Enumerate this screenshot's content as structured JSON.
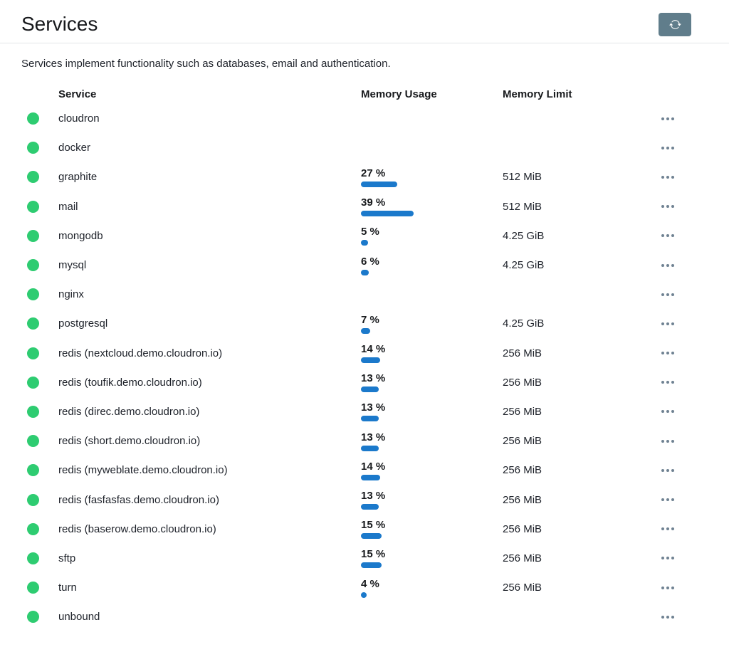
{
  "header": {
    "title": "Services",
    "refresh_icon": "refresh-icon"
  },
  "description": "Services implement functionality such as databases, email and authentication.",
  "colors": {
    "status_running_green": "#2ecc71",
    "memory_usage_bar_blue": "#1b79cb",
    "refresh_button_bg": "#607d8b"
  },
  "table": {
    "columns": [
      "Service",
      "Memory Usage",
      "Memory Limit"
    ],
    "services": [
      {
        "name": "cloudron",
        "status": "running",
        "memory_usage_pct": null,
        "memory_usage_label": null,
        "memory_limit": null
      },
      {
        "name": "docker",
        "status": "running",
        "memory_usage_pct": null,
        "memory_usage_label": null,
        "memory_limit": null
      },
      {
        "name": "graphite",
        "status": "running",
        "memory_usage_pct": 27,
        "memory_usage_label": "27 %",
        "memory_limit": "512 MiB"
      },
      {
        "name": "mail",
        "status": "running",
        "memory_usage_pct": 39,
        "memory_usage_label": "39 %",
        "memory_limit": "512 MiB"
      },
      {
        "name": "mongodb",
        "status": "running",
        "memory_usage_pct": 5,
        "memory_usage_label": "5 %",
        "memory_limit": "4.25 GiB"
      },
      {
        "name": "mysql",
        "status": "running",
        "memory_usage_pct": 6,
        "memory_usage_label": "6 %",
        "memory_limit": "4.25 GiB"
      },
      {
        "name": "nginx",
        "status": "running",
        "memory_usage_pct": null,
        "memory_usage_label": null,
        "memory_limit": null
      },
      {
        "name": "postgresql",
        "status": "running",
        "memory_usage_pct": 7,
        "memory_usage_label": "7 %",
        "memory_limit": "4.25 GiB"
      },
      {
        "name": "redis (nextcloud.demo.cloudron.io)",
        "status": "running",
        "memory_usage_pct": 14,
        "memory_usage_label": "14 %",
        "memory_limit": "256 MiB"
      },
      {
        "name": "redis (toufik.demo.cloudron.io)",
        "status": "running",
        "memory_usage_pct": 13,
        "memory_usage_label": "13 %",
        "memory_limit": "256 MiB"
      },
      {
        "name": "redis (direc.demo.cloudron.io)",
        "status": "running",
        "memory_usage_pct": 13,
        "memory_usage_label": "13 %",
        "memory_limit": "256 MiB"
      },
      {
        "name": "redis (short.demo.cloudron.io)",
        "status": "running",
        "memory_usage_pct": 13,
        "memory_usage_label": "13 %",
        "memory_limit": "256 MiB"
      },
      {
        "name": "redis (myweblate.demo.cloudron.io)",
        "status": "running",
        "memory_usage_pct": 14,
        "memory_usage_label": "14 %",
        "memory_limit": "256 MiB"
      },
      {
        "name": "redis (fasfasfas.demo.cloudron.io)",
        "status": "running",
        "memory_usage_pct": 13,
        "memory_usage_label": "13 %",
        "memory_limit": "256 MiB"
      },
      {
        "name": "redis (baserow.demo.cloudron.io)",
        "status": "running",
        "memory_usage_pct": 15,
        "memory_usage_label": "15 %",
        "memory_limit": "256 MiB"
      },
      {
        "name": "sftp",
        "status": "running",
        "memory_usage_pct": 15,
        "memory_usage_label": "15 %",
        "memory_limit": "256 MiB"
      },
      {
        "name": "turn",
        "status": "running",
        "memory_usage_pct": 4,
        "memory_usage_label": "4 %",
        "memory_limit": "256 MiB"
      },
      {
        "name": "unbound",
        "status": "running",
        "memory_usage_pct": null,
        "memory_usage_label": null,
        "memory_limit": null
      }
    ]
  }
}
